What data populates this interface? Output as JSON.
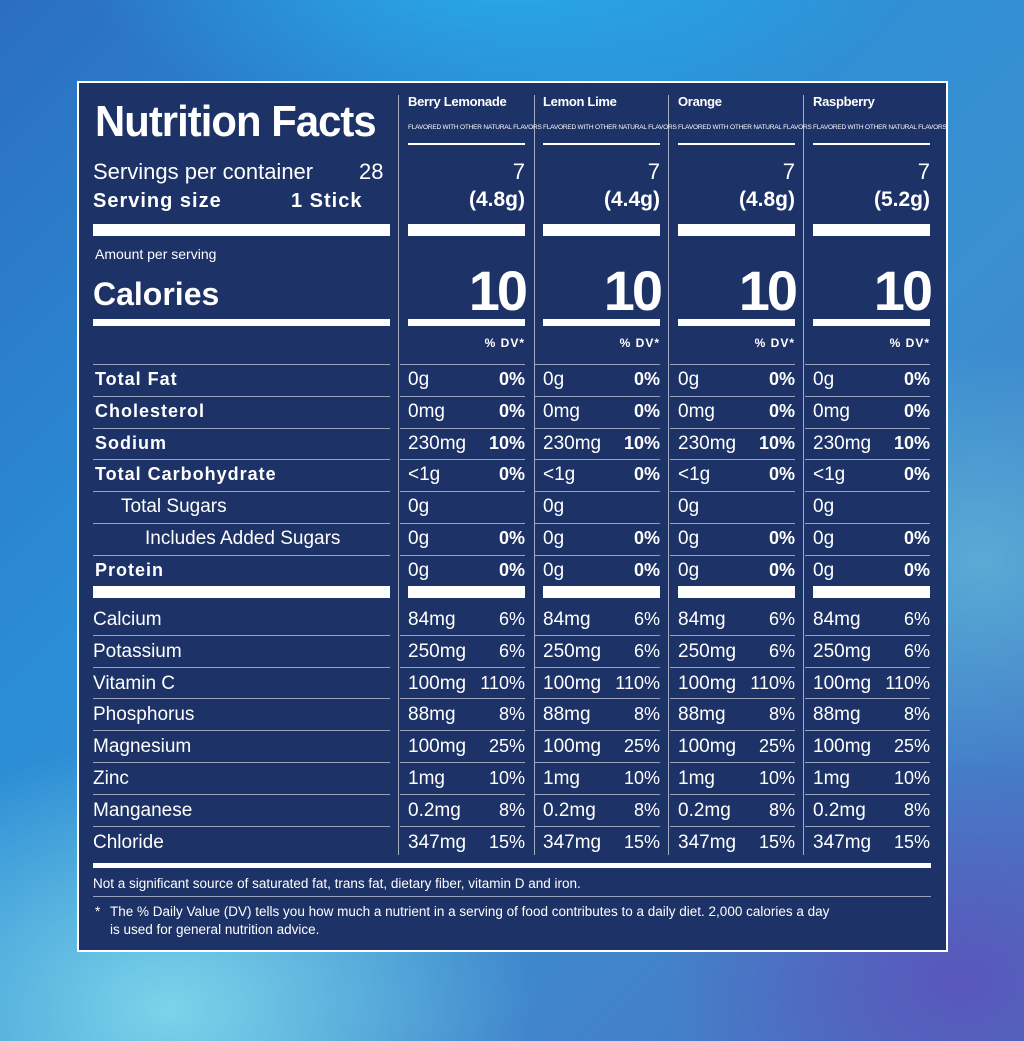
{
  "title": "Nutrition Facts",
  "servings_label": "Servings per container",
  "servings_value": "28",
  "serving_size_label": "Serving size",
  "serving_size_value": "1 Stick",
  "amount_per_serving": "Amount per serving",
  "calories_label": "Calories",
  "dv_header": "% DV*",
  "flavors": [
    {
      "name": "Berry Lemonade",
      "subtitle": "FLAVORED WITH OTHER NATURAL FLAVORS",
      "servings": "7",
      "size": "(4.8g)",
      "calories": "10"
    },
    {
      "name": "Lemon Lime",
      "subtitle": "FLAVORED WITH OTHER NATURAL FLAVORS",
      "servings": "7",
      "size": "(4.4g)",
      "calories": "10"
    },
    {
      "name": "Orange",
      "subtitle": "FLAVORED WITH OTHER NATURAL FLAVORS",
      "servings": "7",
      "size": "(4.8g)",
      "calories": "10"
    },
    {
      "name": "Raspberry",
      "subtitle": "FLAVORED WITH OTHER NATURAL FLAVORS",
      "servings": "7",
      "size": "(5.2g)",
      "calories": "10"
    }
  ],
  "macros": [
    {
      "label": "Total Fat",
      "style": "bold",
      "indent": 0,
      "amount": "0g",
      "dv": "0%"
    },
    {
      "label": "Cholesterol",
      "style": "bold",
      "indent": 0,
      "amount": "0mg",
      "dv": "0%"
    },
    {
      "label": "Sodium",
      "style": "bold",
      "indent": 0,
      "amount": "230mg",
      "dv": "10%"
    },
    {
      "label": "Total Carbohydrate",
      "style": "bold",
      "indent": 0,
      "amount": "<1g",
      "dv": "0%"
    },
    {
      "label": "Total Sugars",
      "style": "normal",
      "indent": 1,
      "amount": "0g",
      "dv": ""
    },
    {
      "label": "Includes Added Sugars",
      "style": "normal",
      "indent": 2,
      "amount": "0g",
      "dv": "0%"
    },
    {
      "label": "Protein",
      "style": "bold",
      "indent": 0,
      "amount": "0g",
      "dv": "0%"
    }
  ],
  "minerals": [
    {
      "label": "Calcium",
      "amount": "84mg",
      "dv": "6%"
    },
    {
      "label": "Potassium",
      "amount": "250mg",
      "dv": "6%"
    },
    {
      "label": "Vitamin C",
      "amount": "100mg",
      "dv": "110%"
    },
    {
      "label": "Phosphorus",
      "amount": "88mg",
      "dv": "8%"
    },
    {
      "label": "Magnesium",
      "amount": "100mg",
      "dv": "25%"
    },
    {
      "label": "Zinc",
      "amount": "1mg",
      "dv": "10%"
    },
    {
      "label": "Manganese",
      "amount": "0.2mg",
      "dv": "8%"
    },
    {
      "label": "Chloride",
      "amount": "347mg",
      "dv": "15%"
    }
  ],
  "footnote_1": "Not a significant source of saturated fat, trans fat, dietary fiber, vitamin D and iron.",
  "footnote_2_marker": "*",
  "footnote_2_line1": "The % Daily Value (DV) tells you how much a nutrient in a serving of food contributes to a daily diet. 2,000 calories a day",
  "footnote_2_line2": "is used for general nutrition advice.",
  "colors": {
    "panel": "#1d3266",
    "text": "#ffffff"
  }
}
